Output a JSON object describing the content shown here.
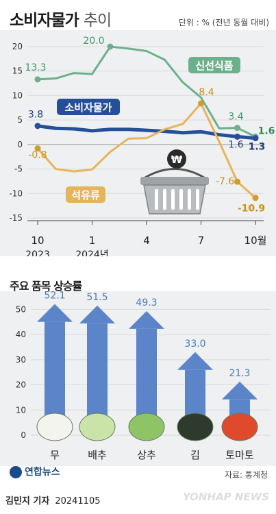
{
  "title": {
    "main": "소비자물가",
    "light": "추이"
  },
  "unit": "단위 : % (전년 동월 대비)",
  "section2_title": "주요 품목 상승률",
  "source": "자료: 통계청",
  "agency": "연합뉴스",
  "author": "김민지 기자",
  "date": "20241105",
  "watermark": "YONHAP NEWS",
  "chart_data": [
    {
      "type": "line",
      "title": "소비자물가 추이",
      "ylim": [
        -15,
        20
      ],
      "yticks": [
        20,
        15,
        10,
        5,
        0,
        -5,
        -10,
        -15
      ],
      "x": [
        "2023-10",
        "2023-11",
        "2023-12",
        "2024-01",
        "2024-02",
        "2024-03",
        "2024-04",
        "2024-05",
        "2024-06",
        "2024-07",
        "2024-08",
        "2024-09",
        "2024-10"
      ],
      "xtick_labels": [
        {
          "index": 0,
          "month": "10",
          "year": "2023"
        },
        {
          "index": 3,
          "month": "1",
          "year": "2024년"
        },
        {
          "index": 6,
          "month": "4",
          "year": ""
        },
        {
          "index": 9,
          "month": "7",
          "year": ""
        },
        {
          "index": 12,
          "month": "10월",
          "year": ""
        }
      ],
      "series": [
        {
          "name": "신선식품",
          "color": "#6db08c",
          "values": [
            13.3,
            13.5,
            14.6,
            14.4,
            20.0,
            19.6,
            19.1,
            17.3,
            12.7,
            9.6,
            3.3,
            3.4,
            1.6
          ],
          "labels": [
            {
              "index": 0,
              "text": "13.3"
            },
            {
              "index": 4,
              "text": "20.0"
            },
            {
              "index": 11,
              "text": "3.4"
            },
            {
              "index": 12,
              "text": "1.6"
            }
          ]
        },
        {
          "name": "소비자물가",
          "color": "#264f9a",
          "values": [
            3.8,
            3.3,
            3.2,
            2.8,
            3.1,
            3.1,
            2.9,
            2.7,
            2.4,
            2.6,
            2.0,
            1.6,
            1.3
          ],
          "labels": [
            {
              "index": 0,
              "text": "3.8"
            },
            {
              "index": 11,
              "text": "1.6"
            },
            {
              "index": 12,
              "text": "1.3"
            }
          ]
        },
        {
          "name": "석유류",
          "color": "#e6b45a",
          "values": [
            -0.8,
            -5.0,
            -5.5,
            -5.1,
            -1.5,
            1.2,
            1.3,
            3.1,
            4.2,
            8.4,
            0.6,
            -7.6,
            -10.9
          ],
          "labels": [
            {
              "index": 0,
              "text": "-0.8"
            },
            {
              "index": 9,
              "text": "8.4"
            },
            {
              "index": 11,
              "text": "-7.6"
            },
            {
              "index": 12,
              "text": "-10.9"
            }
          ]
        }
      ]
    },
    {
      "type": "bar",
      "title": "주요 품목 상승률",
      "ylim": [
        0,
        55
      ],
      "yticks": [
        50,
        40,
        30,
        20,
        10,
        0
      ],
      "categories": [
        "무",
        "배추",
        "상추",
        "김",
        "토마토"
      ],
      "values": [
        52.1,
        51.5,
        49.3,
        33.0,
        21.3
      ],
      "value_labels": [
        "52.1",
        "51.5",
        "49.3",
        "33.0",
        "21.3"
      ],
      "color": "#5c84c8"
    }
  ]
}
